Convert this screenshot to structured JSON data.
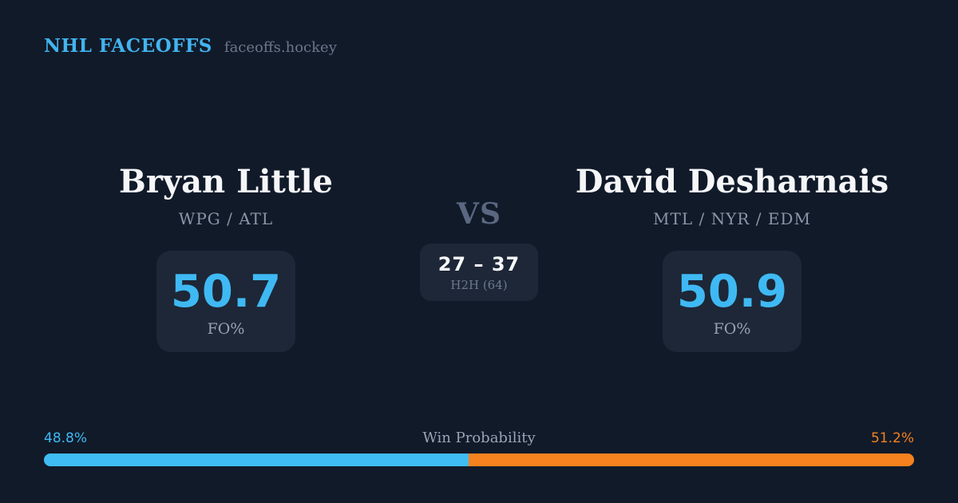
{
  "header": {
    "title": "NHL FACEOFFS",
    "subtitle": "faceoffs.hockey"
  },
  "players": {
    "left": {
      "name": "Bryan Little",
      "teams": "WPG / ATL",
      "fo_pct": "50.7",
      "fo_label": "FO%"
    },
    "right": {
      "name": "David Desharnais",
      "teams": "MTL / NYR / EDM",
      "fo_pct": "50.9",
      "fo_label": "FO%"
    }
  },
  "versus": {
    "label": "VS",
    "h2h_score": "27 – 37",
    "h2h_label": "H2H (64)"
  },
  "win_probability": {
    "title": "Win Probability",
    "left_pct": "48.8%",
    "right_pct": "51.2%",
    "left_value": 48.8,
    "right_value": 51.2,
    "left_color": "#3fbcf4",
    "right_color": "#f5821e"
  },
  "colors": {
    "background": "#111a29",
    "card": "#1d2737",
    "accent_blue": "#3fb9f3",
    "accent_orange": "#f5821e",
    "title_blue": "#42b4ef",
    "text_white": "#f5f6f8",
    "text_muted": "#8b95a7"
  }
}
